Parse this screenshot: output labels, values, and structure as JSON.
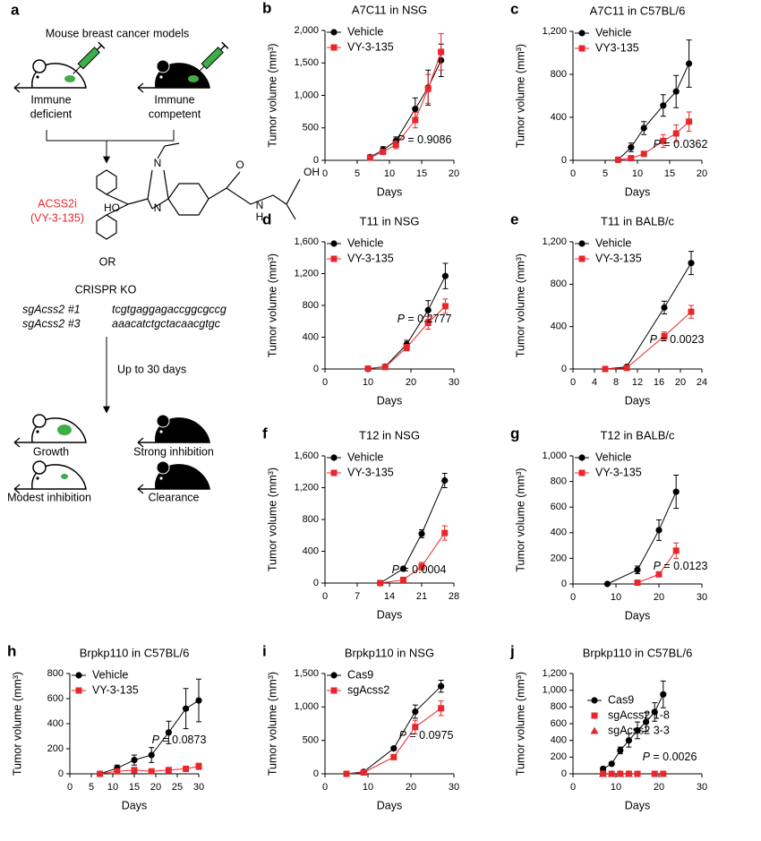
{
  "panel_a": {
    "label": "a",
    "heading": "Mouse breast cancer models",
    "models": [
      [
        "Immune",
        "deficient"
      ],
      [
        "Immune",
        "competent"
      ]
    ],
    "drug": [
      "ACSS2i",
      "(VY-3-135)"
    ],
    "atoms": [
      "N",
      "N",
      "HO",
      "O",
      "N",
      "H",
      "OH"
    ],
    "or": "OR",
    "crispr": "CRISPR KO",
    "guides": [
      [
        "sgAcss2 #1",
        "tcgtgaggagaccggcgccg"
      ],
      [
        "sgAcss2 #3",
        "aaacatctgctacaacgtgc"
      ]
    ],
    "duration": "Up to 30 days",
    "outcomes": [
      "Growth",
      "Strong inhibition",
      "Modest inhibition",
      "Clearance"
    ]
  },
  "chart_data": [
    {
      "panel": "b",
      "type": "line",
      "title": "A7C11 in NSG",
      "xlabel": "Days",
      "ylabel": "Tumor volume (mm³)",
      "x": [
        7,
        9,
        11,
        14,
        16,
        18
      ],
      "xlim": [
        0,
        20
      ],
      "xticks": [
        0,
        5,
        10,
        15,
        20
      ],
      "ylim": [
        0,
        2000
      ],
      "yticks": [
        0,
        500,
        {
          "value": 1000,
          "label": "1,000"
        },
        {
          "value": 1500,
          "label": "1,500"
        },
        {
          "value": 2000,
          "label": "2,000"
        }
      ],
      "legend": "upper left",
      "series": [
        {
          "name": "Vehicle",
          "color": "#000000",
          "marker": "circle",
          "values": [
            50,
            160,
            300,
            790,
            1120,
            1540
          ],
          "errors": [
            30,
            50,
            60,
            170,
            270,
            250
          ]
        },
        {
          "name": "VY-3-135",
          "color": "#e8262b",
          "marker": "square",
          "values": [
            40,
            130,
            240,
            620,
            1100,
            1670
          ],
          "errors": [
            20,
            40,
            60,
            120,
            220,
            280
          ]
        }
      ],
      "annotation_prefix": "P",
      "annotation": "= 0.9086"
    },
    {
      "panel": "c",
      "type": "line",
      "title": "A7C11 in C57BL/6",
      "xlabel": "Days",
      "ylabel": "Tumor volume (mm³)",
      "x": [
        7,
        9,
        11,
        14,
        16,
        18
      ],
      "xlim": [
        0,
        20
      ],
      "xticks": [
        0,
        5,
        10,
        15,
        20
      ],
      "ylim": [
        0,
        1200
      ],
      "yticks": [
        0,
        400,
        800,
        {
          "value": 1200,
          "label": "1,200"
        }
      ],
      "legend": "upper left",
      "series": [
        {
          "name": "Vehicle",
          "color": "#000000",
          "marker": "circle",
          "values": [
            5,
            120,
            300,
            510,
            640,
            900
          ],
          "errors": [
            5,
            40,
            60,
            100,
            150,
            220
          ]
        },
        {
          "name": "VY3-135",
          "color": "#e8262b",
          "marker": "square",
          "values": [
            5,
            20,
            60,
            180,
            250,
            360
          ],
          "errors": [
            3,
            10,
            20,
            60,
            80,
            90
          ]
        }
      ],
      "annotation_prefix": "P",
      "annotation": "= 0.0362"
    },
    {
      "panel": "d",
      "type": "line",
      "title": "T11 in NSG",
      "xlabel": "Days",
      "ylabel": "Tumor volume (mm³)",
      "x": [
        10,
        14,
        19,
        24,
        28
      ],
      "xlim": [
        0,
        30
      ],
      "xticks": [
        0,
        10,
        20,
        30
      ],
      "ylim": [
        0,
        1600
      ],
      "yticks": [
        0,
        400,
        800,
        {
          "value": 1200,
          "label": "1,200"
        },
        {
          "value": 1600,
          "label": "1,600"
        }
      ],
      "legend": "upper left",
      "series": [
        {
          "name": "Vehicle",
          "color": "#000000",
          "marker": "circle",
          "values": [
            5,
            30,
            310,
            740,
            1170
          ],
          "errors": [
            5,
            10,
            50,
            120,
            160
          ]
        },
        {
          "name": "VY-3-135",
          "color": "#e8262b",
          "marker": "square",
          "values": [
            5,
            25,
            270,
            580,
            790
          ],
          "errors": [
            5,
            10,
            40,
            80,
            90
          ]
        }
      ],
      "annotation_prefix": "P",
      "annotation": "= 0.2777"
    },
    {
      "panel": "e",
      "type": "line",
      "title": "T11 in BALB/c",
      "xlabel": "Days",
      "ylabel": "Tumor volume (mm³)",
      "x": [
        6,
        10,
        17,
        22
      ],
      "xlim": [
        0,
        24
      ],
      "xticks": [
        0,
        4,
        8,
        12,
        16,
        20,
        24
      ],
      "ylim": [
        0,
        1200
      ],
      "yticks": [
        0,
        400,
        800,
        {
          "value": 1200,
          "label": "1,200"
        }
      ],
      "legend": "upper left",
      "series": [
        {
          "name": "Vehicle",
          "color": "#000000",
          "marker": "circle",
          "values": [
            0,
            20,
            580,
            1000
          ],
          "errors": [
            0,
            5,
            60,
            110
          ]
        },
        {
          "name": "VY-3-135",
          "color": "#e8262b",
          "marker": "square",
          "values": [
            0,
            10,
            310,
            540
          ],
          "errors": [
            0,
            5,
            40,
            60
          ]
        }
      ],
      "annotation_prefix": "P",
      "annotation": "= 0.0023"
    },
    {
      "panel": "f",
      "type": "line",
      "title": "T12 in NSG",
      "xlabel": "Days",
      "ylabel": "Tumor volume (mm³)",
      "x": [
        12,
        17,
        21,
        26
      ],
      "xlim": [
        0,
        28
      ],
      "xticks": [
        0,
        7,
        14,
        21,
        28
      ],
      "ylim": [
        0,
        1600
      ],
      "yticks": [
        0,
        400,
        800,
        {
          "value": 1200,
          "label": "1,200"
        },
        {
          "value": 1600,
          "label": "1,600"
        }
      ],
      "legend": "upper left",
      "series": [
        {
          "name": "Vehicle",
          "color": "#000000",
          "marker": "circle",
          "values": [
            0,
            180,
            620,
            1290
          ],
          "errors": [
            0,
            20,
            50,
            90
          ]
        },
        {
          "name": "VY-3-135",
          "color": "#e8262b",
          "marker": "square",
          "values": [
            0,
            40,
            210,
            630
          ],
          "errors": [
            0,
            15,
            50,
            90
          ]
        }
      ],
      "annotation_prefix": "P",
      "annotation": "= 0.0004"
    },
    {
      "panel": "g",
      "type": "line",
      "title": "T12 in BALB/c",
      "xlabel": "Days",
      "ylabel": "Tumor volume (mm³)",
      "x": [
        8,
        15,
        20,
        24
      ],
      "xlim": [
        0,
        30
      ],
      "xticks": [
        0,
        10,
        20,
        30
      ],
      "ylim": [
        0,
        1000
      ],
      "yticks": [
        0,
        200,
        400,
        600,
        800,
        {
          "value": 1000,
          "label": "1,000"
        }
      ],
      "legend": "upper left",
      "series": [
        {
          "name": "Vehicle",
          "color": "#000000",
          "marker": "circle",
          "values": [
            0,
            110,
            420,
            720
          ],
          "errors": [
            0,
            30,
            80,
            130
          ]
        },
        {
          "name": "VY-3-135",
          "color": "#e8262b",
          "marker": "square",
          "values": [
            null,
            10,
            75,
            260
          ],
          "errors": [
            null,
            5,
            10,
            60
          ]
        }
      ],
      "annotation_prefix": "P",
      "annotation": "= 0.0123"
    },
    {
      "panel": "h",
      "type": "line",
      "title": "Brpkp110 in C57BL/6",
      "xlabel": "Days",
      "ylabel": "Tumor volume (mm³)",
      "x": [
        7,
        11,
        15,
        19,
        23,
        27,
        30
      ],
      "xlim": [
        0,
        30
      ],
      "xticks": [
        0,
        5,
        10,
        15,
        20,
        25,
        30
      ],
      "ylim": [
        0,
        800
      ],
      "yticks": [
        0,
        200,
        400,
        600,
        800
      ],
      "legend": "upper left",
      "series": [
        {
          "name": "Vehicle",
          "color": "#000000",
          "marker": "circle",
          "values": [
            0,
            45,
            110,
            150,
            330,
            520,
            585
          ],
          "errors": [
            0,
            25,
            40,
            60,
            90,
            160,
            170
          ]
        },
        {
          "name": "VY-3-135",
          "color": "#e8262b",
          "marker": "square",
          "values": [
            0,
            20,
            30,
            20,
            30,
            40,
            60
          ],
          "errors": [
            0,
            10,
            15,
            10,
            10,
            20,
            25
          ]
        }
      ],
      "annotation_prefix": "P",
      "annotation": "= 0.0873"
    },
    {
      "panel": "i",
      "type": "line",
      "title": "Brpkp110 in NSG",
      "xlabel": "Days",
      "ylabel": "Tumor volume (mm³)",
      "x": [
        5,
        9,
        16,
        21,
        27
      ],
      "xlim": [
        0,
        30
      ],
      "xticks": [
        0,
        10,
        20,
        30
      ],
      "ylim": [
        0,
        1500
      ],
      "yticks": [
        0,
        500,
        {
          "value": 1000,
          "label": "1,000"
        },
        {
          "value": 1500,
          "label": "1,500"
        }
      ],
      "legend": "upper left",
      "series": [
        {
          "name": "Cas9",
          "color": "#000000",
          "marker": "circle",
          "values": [
            0,
            30,
            380,
            930,
            1310
          ],
          "errors": [
            0,
            10,
            20,
            100,
            90
          ]
        },
        {
          "name": "sgAcss2",
          "color": "#e8262b",
          "marker": "square",
          "values": [
            0,
            20,
            250,
            700,
            980
          ],
          "errors": [
            0,
            10,
            20,
            100,
            110
          ]
        }
      ],
      "annotation_prefix": "P",
      "annotation": "= 0.0975"
    },
    {
      "panel": "j",
      "type": "line",
      "title": "Brpkp110 in C57BL/6",
      "xlabel": "Days",
      "ylabel": "Tumor volume (mm³)",
      "x": [
        7,
        9,
        11,
        13,
        15,
        17,
        19,
        21
      ],
      "xlim": [
        0,
        30
      ],
      "xticks": [
        0,
        10,
        20,
        30
      ],
      "ylim": [
        0,
        1200
      ],
      "yticks": [
        0,
        200,
        400,
        600,
        800,
        {
          "value": 1000,
          "label": "1,000"
        },
        {
          "value": 1200,
          "label": "1,200"
        }
      ],
      "legend": "center right",
      "series": [
        {
          "name": "Cas9",
          "color": "#000000",
          "marker": "circle",
          "line": true,
          "values": [
            60,
            120,
            280,
            400,
            520,
            620,
            740,
            950
          ],
          "errors": [
            20,
            20,
            40,
            80,
            100,
            110,
            110,
            160
          ]
        },
        {
          "name": "sgAcss2 1-8",
          "color": "#e8262b",
          "marker": "square",
          "line": false,
          "values": [
            0,
            0,
            0,
            0,
            0,
            null,
            0,
            0
          ],
          "errors": [
            0,
            0,
            0,
            0,
            0,
            null,
            0,
            0
          ]
        },
        {
          "name": "sgAcss2 3-3",
          "color": "#e8262b",
          "marker": "triangle",
          "line": false,
          "values": [
            0,
            0,
            0,
            0,
            null,
            null,
            null,
            null
          ],
          "errors": [
            0,
            0,
            0,
            0,
            null,
            null,
            null,
            null
          ]
        }
      ],
      "annotation_prefix": "P",
      "annotation": "= 0.0026"
    }
  ]
}
